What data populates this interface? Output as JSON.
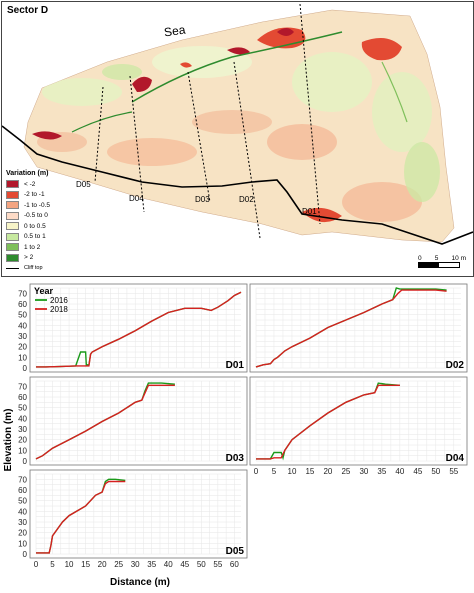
{
  "map": {
    "title": "Sector D",
    "sea_label": "Sea",
    "profiles": [
      "D05",
      "D04",
      "D03",
      "D02",
      "D01"
    ],
    "legend": {
      "title": "Variation (m)",
      "items": [
        {
          "label": "< -2",
          "color": "#b2182b"
        },
        {
          "label": "-2 to -1",
          "color": "#e34a33"
        },
        {
          "label": "-1 to -0.5",
          "color": "#f4a582"
        },
        {
          "label": "-0.5 to 0",
          "color": "#fddbc7"
        },
        {
          "label": "0 to 0.5",
          "color": "#f7f4c8"
        },
        {
          "label": "0.5 to 1",
          "color": "#c7e9a0"
        },
        {
          "label": "1 to 2",
          "color": "#7fbf5b"
        },
        {
          "label": "> 2",
          "color": "#2e8b2e"
        }
      ],
      "cliff_top_label": "Cliff top"
    },
    "scale": {
      "labels": [
        "0",
        "5",
        "10 m"
      ]
    }
  },
  "chart_legend": {
    "title": "Year",
    "series": [
      {
        "name": "2016",
        "color": "#1a9a1a"
      },
      {
        "name": "2018",
        "color": "#d62020"
      }
    ]
  },
  "axes": {
    "ylabel": "Elevation (m)",
    "xlabel": "Distance (m)",
    "y_ticks": [
      "0",
      "10",
      "20",
      "30",
      "40",
      "50",
      "60",
      "70"
    ]
  },
  "chart_data": [
    {
      "type": "line",
      "panel": "D01",
      "xlim": [
        0,
        62
      ],
      "ylim": [
        0,
        75
      ],
      "x_ticks": [
        "0",
        "10",
        "20",
        "30",
        "40",
        "50",
        "60"
      ],
      "series": [
        {
          "name": "2016",
          "x": [
            0,
            3,
            8,
            12,
            13.5,
            14,
            15,
            15.2,
            16,
            16.5,
            17,
            20,
            25,
            30,
            35,
            40,
            45,
            50,
            53,
            55,
            58,
            60,
            62
          ],
          "y": [
            1,
            1,
            1.5,
            2,
            15,
            15,
            15,
            3,
            3,
            13,
            15,
            20,
            27,
            35,
            44,
            52,
            56,
            56,
            54,
            57,
            63,
            68,
            71
          ]
        },
        {
          "name": "2018",
          "x": [
            0,
            3,
            8,
            12,
            13.5,
            15,
            16,
            16.5,
            17,
            20,
            25,
            30,
            35,
            40,
            45,
            50,
            53,
            55,
            58,
            60,
            62
          ],
          "y": [
            1,
            1,
            1.5,
            2,
            2,
            2,
            2,
            13,
            15,
            20,
            27,
            35,
            44,
            52,
            56,
            56,
            54,
            57,
            63,
            68,
            71
          ]
        }
      ]
    },
    {
      "type": "line",
      "panel": "D02",
      "xlim": [
        0,
        57
      ],
      "ylim": [
        0,
        75
      ],
      "x_ticks": [
        "0",
        "5",
        "10",
        "15",
        "20",
        "25",
        "30",
        "35",
        "40",
        "45",
        "50",
        "55"
      ],
      "series": [
        {
          "name": "2016",
          "x": [
            0,
            2,
            4,
            5,
            6,
            8,
            10,
            15,
            20,
            25,
            30,
            35,
            38,
            39,
            40,
            45,
            50,
            53
          ],
          "y": [
            1,
            3,
            4,
            8,
            10,
            16,
            20,
            28,
            38,
            45,
            52,
            60,
            64,
            75,
            74,
            74,
            74,
            73
          ]
        },
        {
          "name": "2018",
          "x": [
            0,
            2,
            4,
            5,
            6,
            8,
            10,
            15,
            20,
            25,
            30,
            35,
            38,
            39.5,
            40.5,
            45,
            50,
            53
          ],
          "y": [
            1,
            3,
            4,
            8,
            10,
            16,
            20,
            28,
            38,
            45,
            52,
            60,
            64,
            70,
            73,
            73,
            73,
            72
          ]
        }
      ]
    },
    {
      "type": "line",
      "panel": "D03",
      "xlim": [
        0,
        62
      ],
      "ylim": [
        0,
        75
      ],
      "x_ticks": [
        "0",
        "10",
        "20",
        "30",
        "40",
        "50",
        "60"
      ],
      "series": [
        {
          "name": "2016",
          "x": [
            0,
            2,
            5,
            10,
            15,
            20,
            25,
            30,
            32,
            33,
            34,
            35,
            38,
            42
          ],
          "y": [
            2,
            5,
            12,
            20,
            28,
            37,
            45,
            55,
            57,
            66,
            73,
            73,
            73,
            72
          ]
        },
        {
          "name": "2018",
          "x": [
            0,
            2,
            5,
            10,
            15,
            20,
            25,
            30,
            32,
            33,
            34,
            35,
            38,
            42
          ],
          "y": [
            2,
            5,
            12,
            20,
            28,
            37,
            45,
            55,
            57,
            64,
            71,
            71,
            71,
            71
          ]
        }
      ]
    },
    {
      "type": "line",
      "panel": "D04",
      "xlim": [
        0,
        57
      ],
      "ylim": [
        0,
        75
      ],
      "x_ticks": [
        "0",
        "5",
        "10",
        "15",
        "20",
        "25",
        "30",
        "35",
        "40",
        "45",
        "50",
        "55"
      ],
      "series": [
        {
          "name": "2016",
          "x": [
            0,
            4,
            5,
            6,
            7,
            7.5,
            8,
            10,
            15,
            20,
            25,
            30,
            33,
            34,
            36,
            40
          ],
          "y": [
            2,
            2,
            8,
            8,
            8,
            3,
            10,
            20,
            33,
            45,
            55,
            62,
            64,
            73,
            72,
            71
          ]
        },
        {
          "name": "2018",
          "x": [
            0,
            4,
            5,
            6,
            7,
            8,
            10,
            15,
            20,
            25,
            30,
            33,
            34,
            36,
            40
          ],
          "y": [
            2,
            2,
            3,
            3,
            3,
            10,
            20,
            33,
            45,
            55,
            62,
            64,
            71,
            71,
            71
          ]
        }
      ]
    },
    {
      "type": "line",
      "panel": "D05",
      "xlim": [
        0,
        62
      ],
      "ylim": [
        0,
        75
      ],
      "x_ticks": [
        "0",
        "5",
        "10",
        "15",
        "20",
        "25",
        "30",
        "35",
        "40",
        "45",
        "50",
        "55",
        "60"
      ],
      "series": [
        {
          "name": "2016",
          "x": [
            0,
            4,
            4.5,
            5,
            8,
            10,
            15,
            18,
            20,
            21,
            22,
            24,
            27
          ],
          "y": [
            1,
            1,
            8,
            17,
            30,
            36,
            45,
            55,
            58,
            68,
            70,
            70,
            69
          ]
        },
        {
          "name": "2018",
          "x": [
            0,
            4,
            4.5,
            5,
            8,
            10,
            15,
            18,
            20,
            21,
            22,
            24,
            27
          ],
          "y": [
            1,
            1,
            8,
            17,
            30,
            36,
            45,
            55,
            58,
            66,
            68,
            68,
            68
          ]
        }
      ]
    }
  ]
}
